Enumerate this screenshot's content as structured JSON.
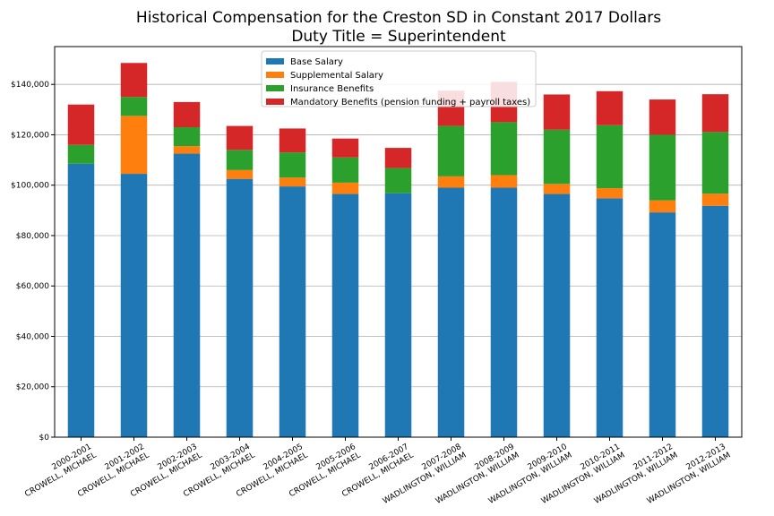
{
  "chart_data": {
    "type": "bar",
    "stacked": true,
    "title": "Historical Compensation for the Creston SD in Constant 2017 Dollars",
    "subtitle": "Duty Title = Superintendent",
    "xlabel": "",
    "ylabel": "",
    "ylim": [
      0,
      155000
    ],
    "yticks": [
      "$0",
      "$20,000",
      "$40,000",
      "$60,000",
      "$80,000",
      "$100,000",
      "$120,000",
      "$140,000"
    ],
    "ytick_values": [
      0,
      20000,
      40000,
      60000,
      80000,
      100000,
      120000,
      140000
    ],
    "grid": "horizontal",
    "legend_position": "top-center",
    "categories": [
      {
        "year": "2000-2001",
        "name": "CROWELL, MICHAEL"
      },
      {
        "year": "2001-2002",
        "name": "CROWELL, MICHAEL"
      },
      {
        "year": "2002-2003",
        "name": "CROWELL, MICHAEL"
      },
      {
        "year": "2003-2004",
        "name": "CROWELL, MICHAEL"
      },
      {
        "year": "2004-2005",
        "name": "CROWELL, MICHAEL"
      },
      {
        "year": "2005-2006",
        "name": "CROWELL, MICHAEL"
      },
      {
        "year": "2006-2007",
        "name": "CROWELL, MICHAEL"
      },
      {
        "year": "2007-2008",
        "name": "WADLINGTON, WILLIAM"
      },
      {
        "year": "2008-2009",
        "name": "WADLINGTON, WILLIAM"
      },
      {
        "year": "2009-2010",
        "name": "WADLINGTON, WILLIAM"
      },
      {
        "year": "2010-2011",
        "name": "WADLINGTON, WILLIAM"
      },
      {
        "year": "2011-2012",
        "name": "WADLINGTON, WILLIAM"
      },
      {
        "year": "2012-2013",
        "name": "WADLINGTON, WILLIAM"
      }
    ],
    "series": [
      {
        "name": "Base Salary",
        "color": "#1f77b4",
        "values": [
          108500,
          104500,
          112500,
          102500,
          99500,
          96500,
          96800,
          99000,
          99000,
          96500,
          94800,
          89200,
          91800
        ]
      },
      {
        "name": "Supplemental Salary",
        "color": "#ff7f0e",
        "values": [
          0,
          23000,
          3000,
          3500,
          3500,
          4500,
          0,
          4500,
          5000,
          4000,
          4000,
          4800,
          4800
        ]
      },
      {
        "name": "Insurance Benefits",
        "color": "#2ca02c",
        "values": [
          7500,
          7500,
          7500,
          8000,
          10000,
          10000,
          10000,
          20000,
          21000,
          21500,
          25000,
          26000,
          24500
        ]
      },
      {
        "name": "Mandatory Benefits (pension funding + payroll taxes)",
        "color": "#d62728",
        "values": [
          16000,
          13500,
          10000,
          9500,
          9500,
          7500,
          8000,
          14000,
          16000,
          14000,
          13500,
          14000,
          15000
        ]
      }
    ]
  }
}
